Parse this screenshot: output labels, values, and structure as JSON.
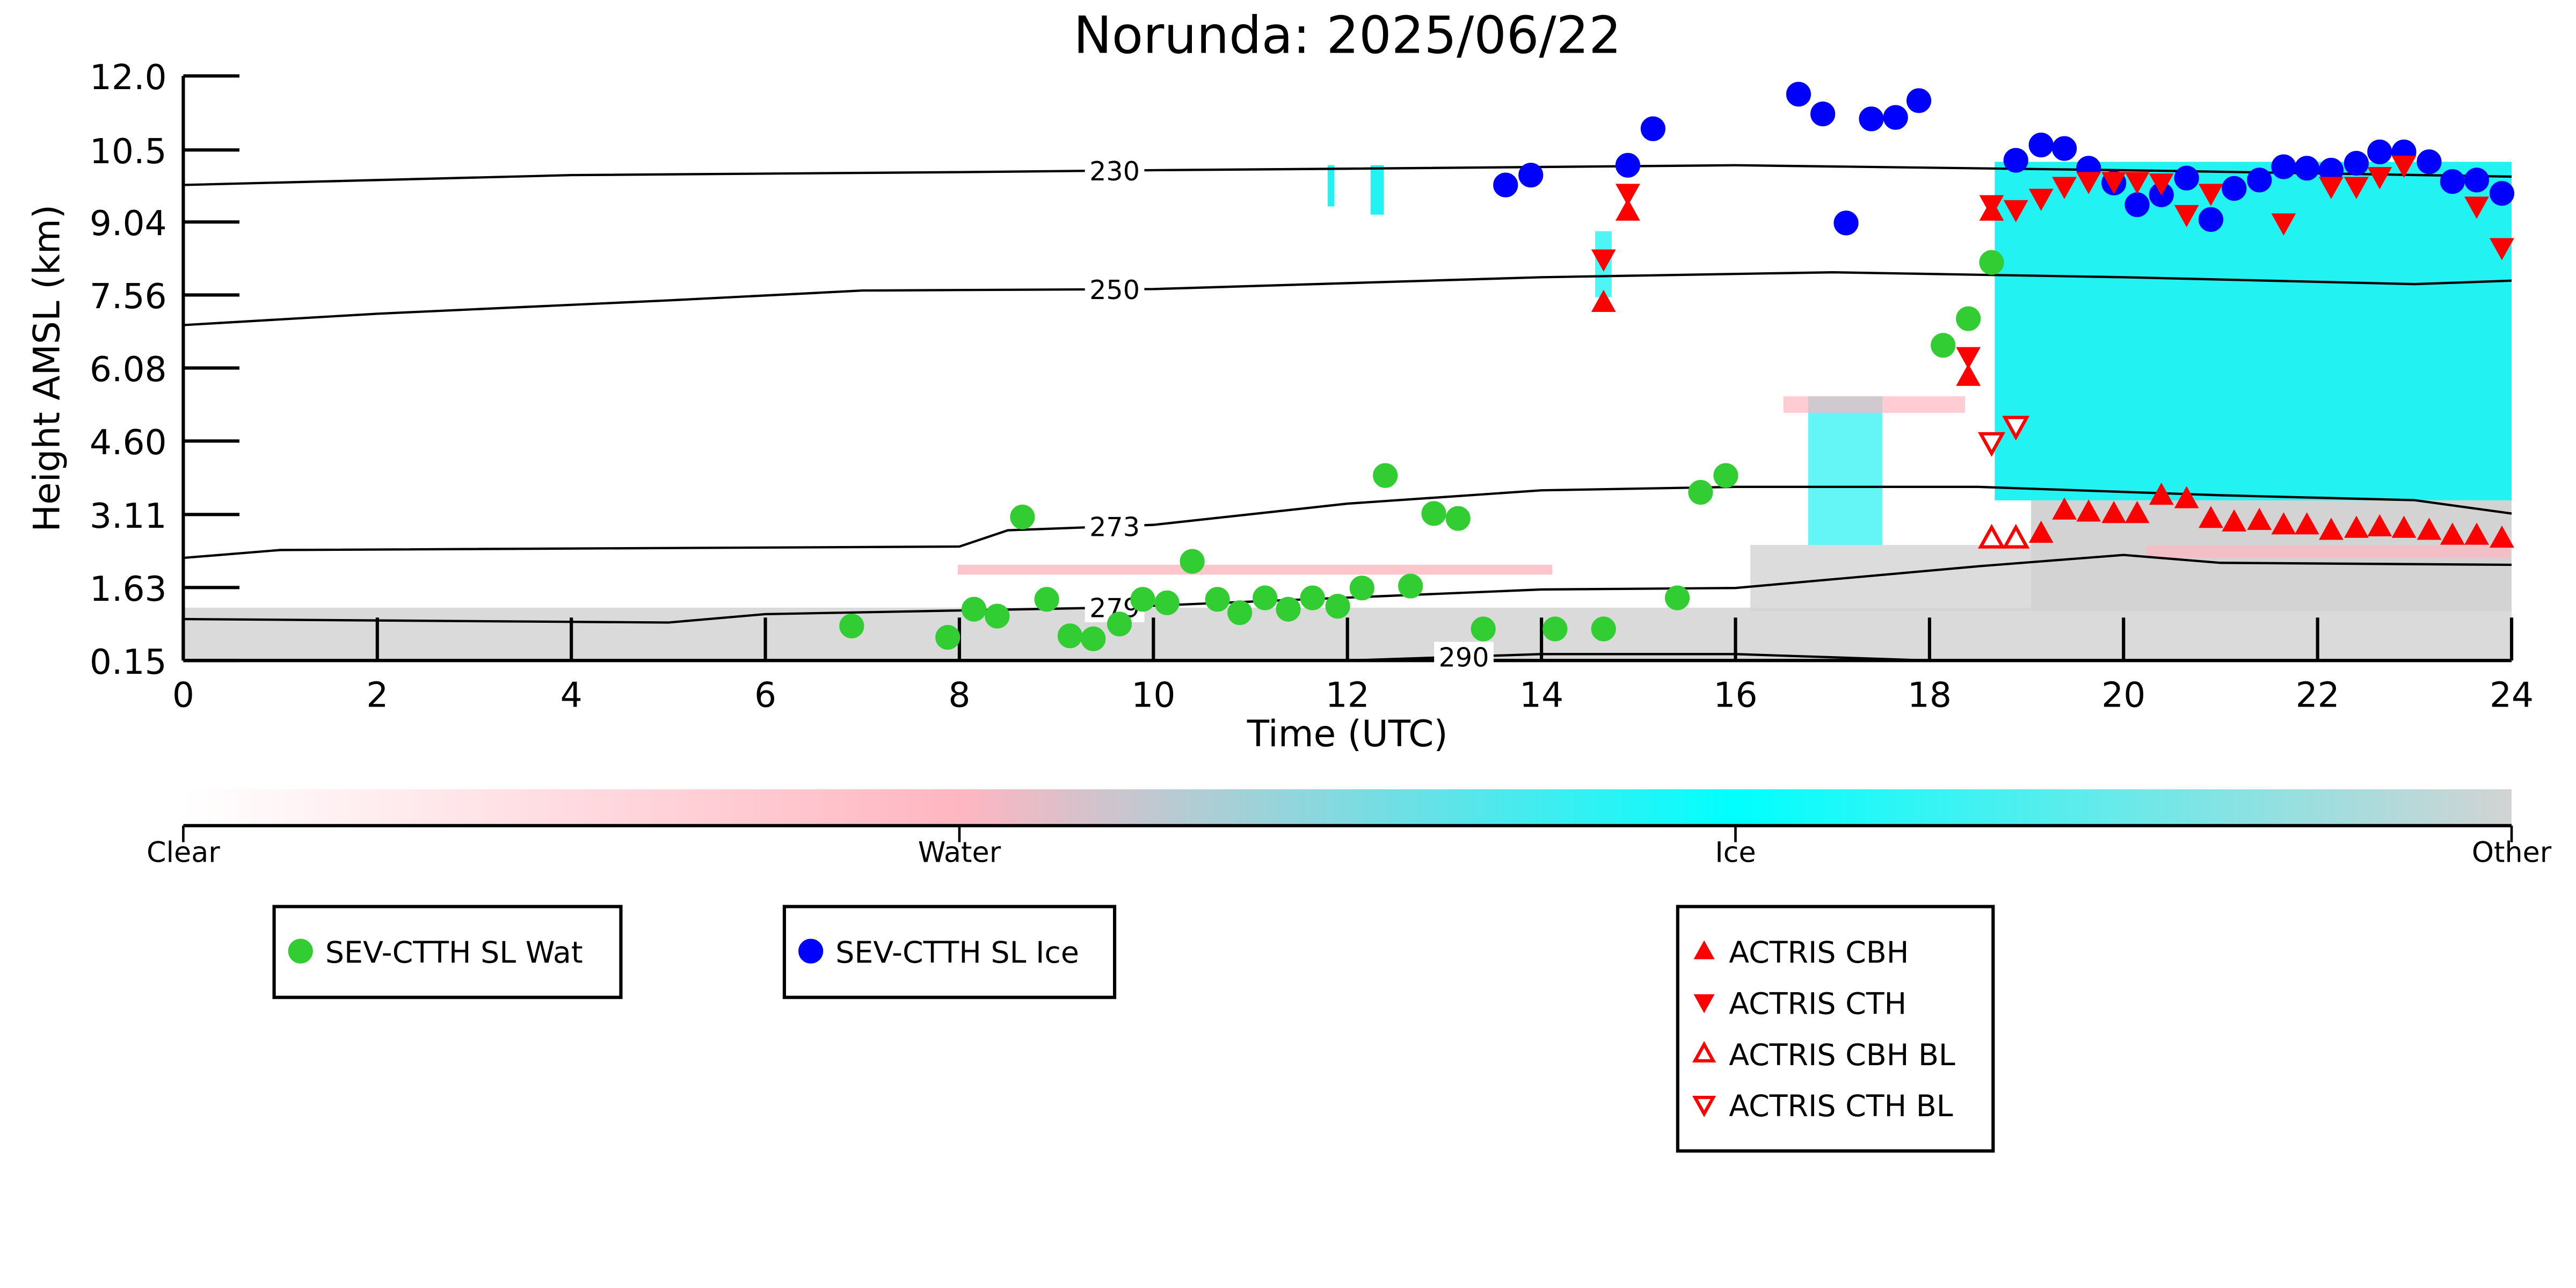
{
  "chart_data": {
    "type": "scatter",
    "title": "Norunda: 2025/06/22",
    "x_label": "Time (UTC)",
    "y_label": "Height AMSL (km)",
    "xlim": [
      0,
      24
    ],
    "ylim": [
      0.15,
      12
    ],
    "xticks": [
      0,
      2,
      4,
      6,
      8,
      10,
      12,
      14,
      16,
      18,
      20,
      22,
      24
    ],
    "yticks": [
      0.15,
      1.63,
      3.11,
      {
        "value": 4.6,
        "label": "4.60"
      },
      6.08,
      7.56,
      9.04,
      10.5,
      {
        "value": 12,
        "label": "12.0"
      }
    ],
    "series": [
      {
        "name": "SEV-CTTH SL Wat",
        "color": "#32cd32",
        "marker": "circle",
        "filled": true,
        "x": [
          6.89,
          7.88,
          8.15,
          8.39,
          8.65,
          8.9,
          9.14,
          9.38,
          9.65,
          9.89,
          10.14,
          10.4,
          10.66,
          10.89,
          11.15,
          11.39,
          11.64,
          11.9,
          12.15,
          12.39,
          12.65,
          12.89,
          13.14,
          13.4,
          14.14,
          14.64,
          15.4,
          15.64,
          15.9,
          18.14,
          18.4,
          18.64
        ],
        "values": [
          0.85,
          0.62,
          1.19,
          1.05,
          3.06,
          1.39,
          0.65,
          0.59,
          0.89,
          1.39,
          1.32,
          2.16,
          1.39,
          1.12,
          1.42,
          1.19,
          1.42,
          1.25,
          1.62,
          3.9,
          1.66,
          3.13,
          3.03,
          0.79,
          0.79,
          0.79,
          1.42,
          3.56,
          3.9,
          6.54,
          7.08,
          8.22
        ]
      },
      {
        "name": "SEV-CTTH SL Ice",
        "color": "#0000ff",
        "marker": "circle",
        "filled": true,
        "x": [
          13.63,
          13.89,
          14.89,
          15.15,
          16.65,
          16.9,
          17.14,
          17.4,
          17.65,
          17.89,
          18.89,
          19.15,
          19.39,
          19.64,
          19.9,
          20.14,
          20.39,
          20.65,
          20.9,
          21.14,
          21.4,
          21.65,
          21.89,
          22.14,
          22.4,
          22.64,
          22.89,
          23.15,
          23.39,
          23.64,
          23.9
        ],
        "values": [
          9.79,
          9.99,
          10.19,
          10.93,
          11.63,
          11.23,
          9.02,
          11.13,
          11.16,
          11.5,
          10.29,
          10.6,
          10.53,
          10.13,
          9.83,
          9.39,
          9.59,
          9.93,
          9.09,
          9.72,
          9.89,
          10.16,
          10.13,
          10.09,
          10.23,
          10.46,
          10.46,
          10.26,
          9.86,
          9.89,
          9.62
        ]
      },
      {
        "name": "ACTRIS CBH",
        "color": "#ff0000",
        "marker": "triangle-up",
        "filled": true,
        "x": [
          14.64,
          14.89,
          18.4,
          18.64,
          19.15,
          19.39,
          19.64,
          19.9,
          20.14,
          20.39,
          20.65,
          20.9,
          21.14,
          21.4,
          21.65,
          21.89,
          22.14,
          22.4,
          22.64,
          22.89,
          23.15,
          23.39,
          23.64,
          23.9
        ],
        "values": [
          7.41,
          9.26,
          5.91,
          9.26,
          2.73,
          3.2,
          3.16,
          3.13,
          3.13,
          3.5,
          3.43,
          3.03,
          2.96,
          2.99,
          2.9,
          2.9,
          2.79,
          2.83,
          2.86,
          2.83,
          2.79,
          2.69,
          2.69,
          2.63
        ]
      },
      {
        "name": "ACTRIS CTH",
        "color": "#ff0000",
        "marker": "triangle-down",
        "filled": true,
        "x": [
          14.64,
          14.89,
          18.4,
          18.64,
          18.89,
          19.15,
          19.39,
          19.64,
          19.9,
          20.14,
          20.39,
          20.65,
          20.9,
          21.65,
          22.14,
          22.4,
          22.64,
          22.89,
          23.64,
          23.9
        ],
        "values": [
          8.29,
          9.62,
          6.31,
          9.39,
          9.29,
          9.52,
          9.76,
          9.86,
          9.86,
          9.86,
          9.83,
          9.19,
          9.62,
          9.02,
          9.76,
          9.76,
          9.96,
          10.19,
          9.36,
          8.52
        ]
      },
      {
        "name": "ACTRIS CBH BL",
        "color": "#ff0000",
        "marker": "triangle-up",
        "filled": false,
        "x": [
          18.64,
          18.89
        ],
        "values": [
          2.63,
          2.63
        ]
      },
      {
        "name": "ACTRIS CTH BL",
        "color": "#ff0000",
        "marker": "triangle-down",
        "filled": false,
        "x": [
          18.64,
          18.89
        ],
        "values": [
          4.57,
          4.9
        ]
      }
    ],
    "contours": [
      {
        "label": 230,
        "x": [
          0,
          4,
          8,
          10,
          12,
          16,
          20,
          24
        ],
        "values": [
          9.79,
          9.99,
          10.05,
          10.09,
          10.12,
          10.19,
          10.09,
          9.96
        ]
      },
      {
        "label": 250,
        "x": [
          0,
          2,
          5,
          7,
          10,
          14,
          17,
          20,
          23,
          24
        ],
        "values": [
          6.95,
          7.18,
          7.45,
          7.65,
          7.68,
          7.92,
          8.02,
          7.92,
          7.78,
          7.85
        ]
      },
      {
        "label": 273,
        "x": [
          0,
          1,
          8,
          8.5,
          10,
          12,
          14,
          16,
          18.5,
          21,
          23,
          24
        ],
        "values": [
          2.23,
          2.39,
          2.46,
          2.79,
          2.9,
          3.33,
          3.6,
          3.67,
          3.67,
          3.5,
          3.4,
          3.13
        ]
      },
      {
        "label": 279,
        "x": [
          0,
          5,
          6,
          9.5,
          14,
          16,
          18.5,
          20,
          21,
          24
        ],
        "values": [
          0.99,
          0.92,
          1.09,
          1.22,
          1.59,
          1.62,
          2.06,
          2.29,
          2.13,
          2.09
        ]
      },
      {
        "label": 290,
        "x": [
          12,
          14,
          16,
          18
        ],
        "values": [
          0.15,
          0.28,
          0.28,
          0.15
        ]
      }
    ],
    "colorbar": {
      "labels": [
        "Clear",
        "Water",
        "Ice",
        "Other"
      ],
      "colors": [
        "#ffffff",
        "#ffb6c1",
        "#00ffff",
        "#d3d3d3"
      ]
    }
  }
}
